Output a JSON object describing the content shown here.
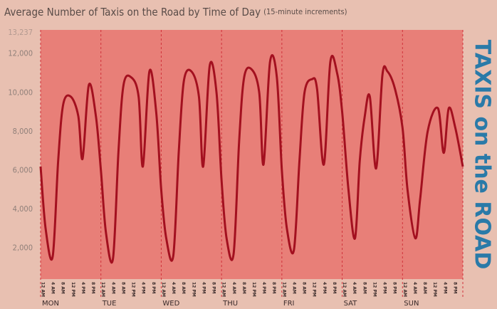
{
  "chart_data": {
    "type": "line",
    "title": "Average Number of Taxis on the Road by Time of Day",
    "subtitle": "(15-minute increments)",
    "side_label": "TAXIS on the ROAD",
    "categories": [
      "MON",
      "TUE",
      "WED",
      "THU",
      "FRI",
      "SAT",
      "SUN"
    ],
    "hour_labels": [
      "12 AM",
      "4 AM",
      "8 AM",
      "12 PM",
      "4 PM",
      "8 PM"
    ],
    "xlim": [
      0,
      168
    ],
    "xticks": [
      0,
      24,
      48,
      72,
      96,
      120,
      144,
      168
    ],
    "ylim": [
      400,
      13237
    ],
    "yticks": [
      {
        "value": 2000,
        "label": "2,000"
      },
      {
        "value": 4000,
        "label": "4,000"
      },
      {
        "value": 6000,
        "label": "6,000"
      },
      {
        "value": 8000,
        "label": "8,000"
      },
      {
        "value": 10000,
        "label": "10,000"
      },
      {
        "value": 12000,
        "label": "12,000"
      },
      {
        "value": 13237,
        "label": "13,237"
      }
    ],
    "grid": true,
    "series": [
      {
        "color": "#a3101f",
        "x": [
          0,
          2,
          4.8,
          7,
          9,
          12,
          15,
          16.7,
          19.2,
          22,
          24,
          26,
          28.8,
          31,
          33,
          36,
          39,
          40.7,
          43.3,
          46,
          48,
          50,
          52.8,
          55,
          57,
          60,
          63,
          64.7,
          67.3,
          70,
          72,
          74,
          76.8,
          79,
          81,
          84,
          87,
          88.7,
          91.3,
          94,
          96,
          98,
          100.8,
          103,
          105,
          108,
          110,
          112.7,
          115.3,
          118,
          120,
          122.5,
          125.1,
          127,
          129,
          131,
          133.5,
          136,
          138,
          141,
          144,
          146,
          149.1,
          151,
          154,
          158.1,
          160.4,
          162.4,
          165,
          168
        ],
        "values": [
          6200,
          3000,
          1550,
          6500,
          9400,
          9800,
          8800,
          6600,
          10400,
          8800,
          6000,
          2800,
          1450,
          7000,
          10400,
          10800,
          9800,
          6200,
          11100,
          9000,
          5000,
          2500,
          1600,
          7000,
          10600,
          11100,
          9800,
          6200,
          11400,
          10000,
          5500,
          2500,
          1700,
          7500,
          10800,
          11200,
          10000,
          6300,
          11600,
          10800,
          6000,
          3000,
          1900,
          6500,
          10000,
          10700,
          10200,
          6300,
          11600,
          11000,
          9000,
          5000,
          2500,
          6500,
          8800,
          9800,
          6100,
          10900,
          11100,
          10200,
          8200,
          5000,
          2500,
          4500,
          8000,
          9200,
          6900,
          9200,
          8200,
          6200
        ]
      }
    ]
  }
}
